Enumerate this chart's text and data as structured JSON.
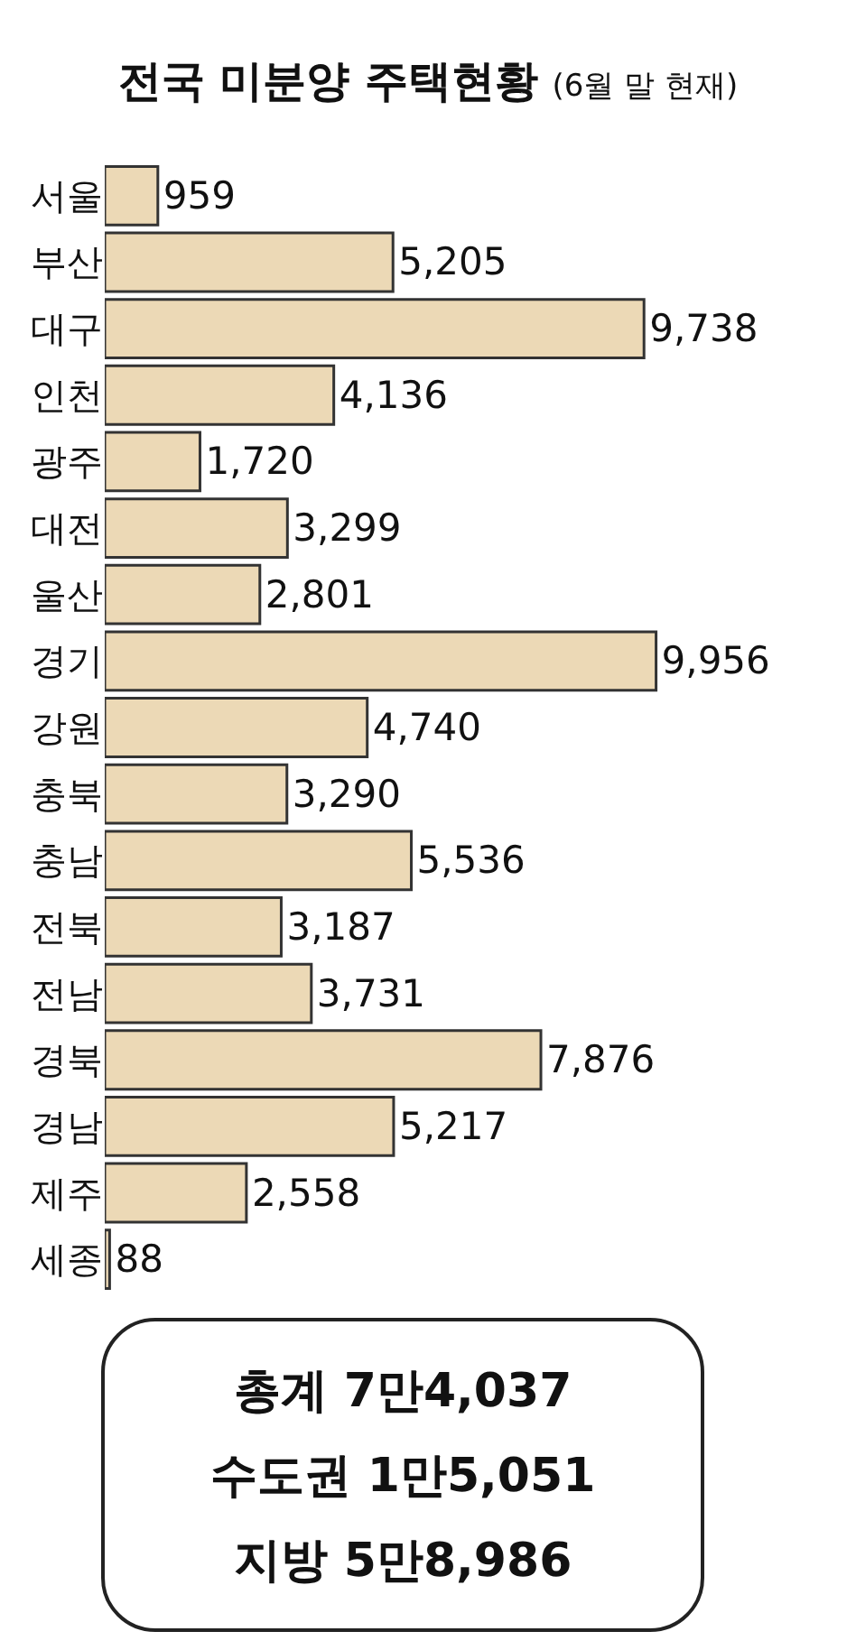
{
  "chart_data": {
    "type": "bar",
    "orientation": "horizontal",
    "title": "전국 미분양 주택현황",
    "subtitle": "(6월 말 현재)",
    "categories": [
      "서울",
      "부산",
      "대구",
      "인천",
      "광주",
      "대전",
      "울산",
      "경기",
      "강원",
      "충북",
      "충남",
      "전북",
      "전남",
      "경북",
      "경남",
      "제주",
      "세종"
    ],
    "values": [
      959,
      5205,
      9738,
      4136,
      1720,
      3299,
      2801,
      9956,
      4740,
      3290,
      5536,
      3187,
      3731,
      7876,
      5217,
      2558,
      88
    ],
    "value_labels": [
      "959",
      "5,205",
      "9,738",
      "4,136",
      "1,720",
      "3,299",
      "2,801",
      "9,956",
      "4,740",
      "3,290",
      "5,536",
      "3,187",
      "3,731",
      "7,876",
      "5,217",
      "2,558",
      "88"
    ],
    "color": "#ecd9b6",
    "annotations": [
      "총계 7만4,037",
      "수도권 1만5,051",
      "지방 5만8,986"
    ]
  }
}
